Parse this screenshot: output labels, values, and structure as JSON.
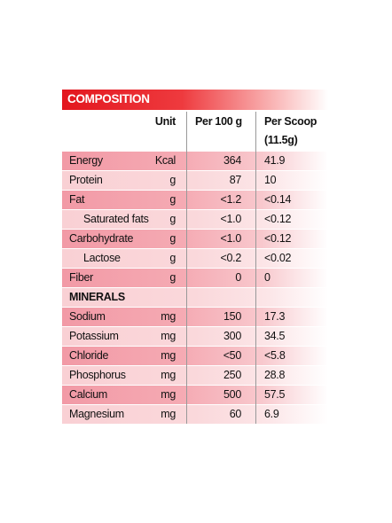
{
  "header": {
    "title": "COMPOSITION"
  },
  "columns": {
    "unit": "Unit",
    "per_100g": "Per 100 g",
    "per_scoop": "Per Scoop",
    "per_scoop_size": "(11.5g)"
  },
  "rows": [
    {
      "name": "Energy",
      "unit": "Kcal",
      "per_100g": "364",
      "per_scoop": "41.9"
    },
    {
      "name": "Protein",
      "unit": "g",
      "per_100g": "87",
      "per_scoop": "10"
    },
    {
      "name": "Fat",
      "unit": "g",
      "per_100g": "<1.2",
      "per_scoop": "<0.14"
    },
    {
      "name": "Saturated fats",
      "unit": "g",
      "per_100g": "<1.0",
      "per_scoop": "<0.12"
    },
    {
      "name": "Carbohydrate",
      "unit": "g",
      "per_100g": "<1.0",
      "per_scoop": "<0.12"
    },
    {
      "name": "Lactose",
      "unit": "g",
      "per_100g": "<0.2",
      "per_scoop": "<0.02"
    },
    {
      "name": "Fiber",
      "unit": "g",
      "per_100g": "0",
      "per_scoop": "0"
    }
  ],
  "minerals": {
    "title": "MINERALS",
    "rows": [
      {
        "name": "Sodium",
        "unit": "mg",
        "per_100g": "150",
        "per_scoop": "17.3"
      },
      {
        "name": "Potassium",
        "unit": "mg",
        "per_100g": "300",
        "per_scoop": "34.5"
      },
      {
        "name": "Chloride",
        "unit": "mg",
        "per_100g": "<50",
        "per_scoop": "<5.8"
      },
      {
        "name": "Phosphorus",
        "unit": "mg",
        "per_100g": "250",
        "per_scoop": "28.8"
      },
      {
        "name": "Calcium",
        "unit": "mg",
        "per_100g": "500",
        "per_scoop": "57.5"
      },
      {
        "name": "Magnesium",
        "unit": "mg",
        "per_100g": "60",
        "per_scoop": "6.9"
      }
    ]
  }
}
